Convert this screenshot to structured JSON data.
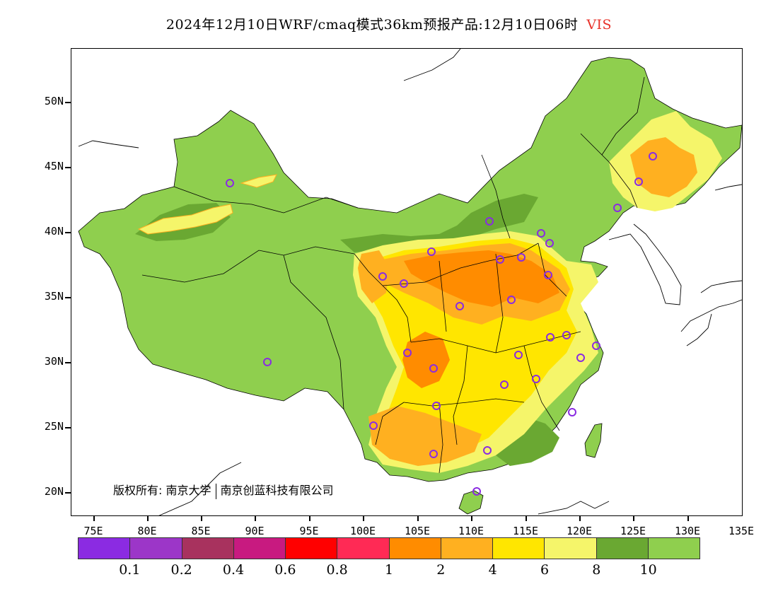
{
  "title": {
    "main": "2024年12月10日WRF/cmaq模式36km预报产品:12月10日06时",
    "variable": "VIS"
  },
  "axes": {
    "lat_labels": [
      "50N",
      "45N",
      "40N",
      "35N",
      "30N",
      "25N",
      "20N"
    ],
    "lon_labels": [
      "75E",
      "80E",
      "85E",
      "90E",
      "95E",
      "100E",
      "105E",
      "110E",
      "115E",
      "120E",
      "125E",
      "130E",
      "135E"
    ]
  },
  "copyright": {
    "owner": "版权所有:",
    "org1": "南京大学",
    "org2": "南京创蓝科技有限公司"
  },
  "legend": {
    "labels": [
      "0.1",
      "0.2",
      "0.4",
      "0.6",
      "0.8",
      "1",
      "2",
      "4",
      "6",
      "8",
      "10"
    ],
    "colors": [
      "#8b2be2",
      "#9c36c8",
      "#a8325e",
      "#c81a80",
      "#ff0000",
      "#ff2a55",
      "#ff8c00",
      "#ffb020",
      "#ffe600",
      "#f5f56a",
      "#6aa832",
      "#8fcf4e"
    ]
  }
}
